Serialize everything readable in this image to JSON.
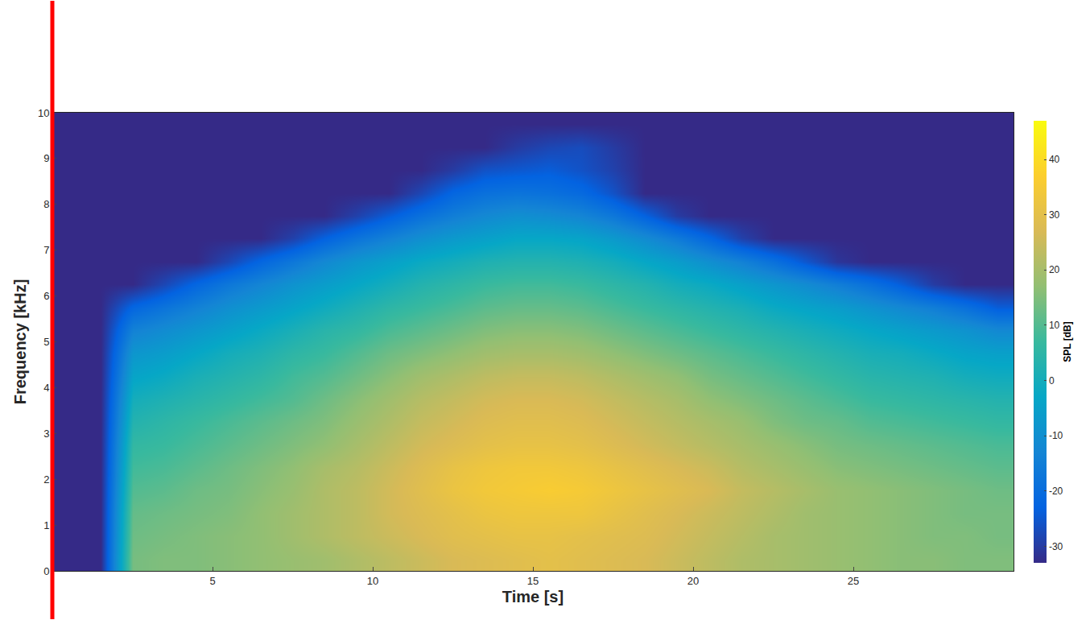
{
  "chart_data": {
    "type": "heatmap",
    "x_label": "Time [s]",
    "y_label": "Frequency [kHz]",
    "grid": false,
    "xlim": [
      0,
      30
    ],
    "ylim": [
      0,
      10
    ],
    "xticks": [
      5,
      10,
      15,
      20,
      25
    ],
    "yticks": [
      0,
      1,
      2,
      3,
      4,
      5,
      6,
      7,
      8,
      9,
      10
    ],
    "x": [
      0.5,
      1.5,
      2.5,
      3.5,
      4.5,
      5.5,
      6.5,
      7.5,
      8.5,
      9.5,
      10.5,
      11.5,
      12.5,
      13.5,
      14.5,
      15.5,
      16.5,
      17.5,
      18.5,
      19.5,
      20.5,
      21.5,
      22.5,
      23.5,
      24.5,
      25.5,
      26.5,
      27.5,
      28.5,
      29.5
    ],
    "y": [
      0.25,
      0.75,
      1.25,
      1.75,
      2.25,
      2.75,
      3.25,
      3.75,
      4.25,
      4.75,
      5.25,
      5.75,
      6.25,
      6.75,
      7.25,
      7.75,
      8.25,
      8.75,
      9.25,
      9.75
    ],
    "z": [
      [
        -33,
        -33,
        14,
        15,
        15,
        16,
        17,
        18,
        19,
        21,
        23,
        25,
        27,
        28,
        29,
        30,
        29,
        28,
        27,
        25,
        23,
        21,
        20,
        19,
        18,
        17,
        16,
        16,
        15,
        15
      ],
      [
        -33,
        -33,
        13,
        14,
        15,
        16,
        17,
        19,
        21,
        23,
        25,
        27,
        29,
        30,
        31,
        31,
        30,
        29,
        28,
        26,
        24,
        22,
        20,
        19,
        18,
        17,
        16,
        15,
        15,
        14
      ],
      [
        -33,
        -33,
        12,
        13,
        14,
        15,
        17,
        19,
        21,
        23,
        26,
        28,
        30,
        32,
        33,
        33,
        33,
        31,
        29,
        27,
        25,
        23,
        21,
        19,
        18,
        17,
        16,
        15,
        14,
        14
      ],
      [
        -33,
        -33,
        10,
        11,
        13,
        14,
        16,
        18,
        21,
        23,
        26,
        29,
        32,
        34,
        35,
        36,
        35,
        33,
        31,
        29,
        27,
        24,
        22,
        20,
        18,
        17,
        16,
        15,
        14,
        13
      ],
      [
        -33,
        -33,
        8,
        9,
        11,
        13,
        15,
        17,
        20,
        22,
        25,
        28,
        31,
        33,
        34,
        34,
        33,
        31,
        29,
        27,
        25,
        22,
        20,
        18,
        16,
        15,
        14,
        13,
        12,
        11
      ],
      [
        -33,
        -33,
        6,
        7,
        9,
        11,
        13,
        15,
        17,
        20,
        23,
        26,
        28,
        30,
        31,
        31,
        30,
        28,
        26,
        24,
        22,
        20,
        18,
        16,
        14,
        13,
        12,
        11,
        10,
        9
      ],
      [
        -33,
        -33,
        3,
        5,
        7,
        9,
        11,
        13,
        15,
        18,
        21,
        24,
        26,
        28,
        29,
        29,
        28,
        26,
        24,
        22,
        20,
        18,
        15,
        13,
        12,
        10,
        9,
        8,
        7,
        6
      ],
      [
        -33,
        -33,
        0,
        2,
        4,
        6,
        8,
        10,
        13,
        16,
        19,
        22,
        24,
        26,
        27,
        27,
        26,
        24,
        22,
        20,
        17,
        15,
        13,
        11,
        9,
        7,
        6,
        5,
        4,
        3
      ],
      [
        -33,
        -33,
        -4,
        -2,
        1,
        3,
        5,
        8,
        10,
        13,
        16,
        19,
        21,
        23,
        24,
        24,
        23,
        21,
        19,
        17,
        14,
        12,
        10,
        8,
        6,
        4,
        3,
        2,
        0,
        -1
      ],
      [
        -33,
        -33,
        -8,
        -6,
        -3,
        0,
        2,
        5,
        7,
        10,
        13,
        15,
        17,
        19,
        20,
        20,
        19,
        17,
        15,
        13,
        11,
        9,
        7,
        5,
        3,
        1,
        0,
        -2,
        -4,
        -5
      ],
      [
        -33,
        -33,
        -14,
        -11,
        -8,
        -5,
        -2,
        1,
        4,
        6,
        9,
        11,
        13,
        15,
        16,
        16,
        15,
        13,
        11,
        9,
        7,
        5,
        3,
        1,
        -1,
        -3,
        -5,
        -7,
        -9,
        -12
      ],
      [
        -33,
        -33,
        -22,
        -18,
        -14,
        -10,
        -7,
        -4,
        -1,
        2,
        5,
        7,
        9,
        11,
        12,
        12,
        11,
        9,
        7,
        5,
        3,
        1,
        -2,
        -4,
        -6,
        -9,
        -12,
        -15,
        -19,
        -24
      ],
      [
        -33,
        -33,
        -33,
        -28,
        -22,
        -17,
        -13,
        -9,
        -6,
        -3,
        0,
        3,
        5,
        7,
        8,
        8,
        7,
        5,
        3,
        0,
        -2,
        -5,
        -8,
        -11,
        -15,
        -19,
        -24,
        -30,
        -33,
        -33
      ],
      [
        -33,
        -33,
        -33,
        -33,
        -33,
        -28,
        -22,
        -17,
        -12,
        -8,
        -5,
        -2,
        0,
        2,
        3,
        3,
        2,
        0,
        -3,
        -6,
        -10,
        -14,
        -19,
        -25,
        -31,
        -33,
        -33,
        -33,
        -33,
        -33
      ],
      [
        -33,
        -33,
        -33,
        -33,
        -33,
        -33,
        -33,
        -29,
        -23,
        -18,
        -14,
        -10,
        -7,
        -5,
        -3,
        -3,
        -4,
        -7,
        -11,
        -16,
        -22,
        -29,
        -33,
        -33,
        -33,
        -33,
        -33,
        -33,
        -33,
        -33
      ],
      [
        -33,
        -33,
        -33,
        -33,
        -33,
        -33,
        -33,
        -33,
        -33,
        -29,
        -24,
        -19,
        -15,
        -12,
        -10,
        -11,
        -13,
        -17,
        -23,
        -30,
        -33,
        -33,
        -33,
        -33,
        -33,
        -33,
        -33,
        -33,
        -33,
        -33
      ],
      [
        -33,
        -33,
        -33,
        -33,
        -33,
        -33,
        -33,
        -33,
        -33,
        -33,
        -33,
        -28,
        -22,
        -19,
        -18,
        -19,
        -21,
        -26,
        -33,
        -33,
        -33,
        -33,
        -33,
        -33,
        -33,
        -33,
        -33,
        -33,
        -33,
        -33
      ],
      [
        -33,
        -33,
        -33,
        -33,
        -33,
        -33,
        -33,
        -33,
        -33,
        -33,
        -33,
        -33,
        -30,
        -26,
        -25,
        -24,
        -26,
        -29,
        -33,
        -33,
        -33,
        -33,
        -33,
        -33,
        -33,
        -33,
        -33,
        -33,
        -33,
        -33
      ],
      [
        -33,
        -33,
        -33,
        -33,
        -33,
        -33,
        -33,
        -33,
        -33,
        -33,
        -33,
        -33,
        -33,
        -33,
        -30,
        -28,
        -27,
        -30,
        -33,
        -33,
        -33,
        -33,
        -33,
        -33,
        -33,
        -33,
        -33,
        -33,
        -33,
        -33
      ],
      [
        -33,
        -33,
        -33,
        -33,
        -33,
        -33,
        -33,
        -33,
        -33,
        -33,
        -33,
        -33,
        -33,
        -33,
        -33,
        -33,
        -33,
        -33,
        -33,
        -33,
        -33,
        -33,
        -33,
        -33,
        -33,
        -33,
        -33,
        -33,
        -33,
        -33
      ]
    ],
    "colorbar": {
      "title": "SPL [dB]",
      "range": [
        -33,
        47
      ],
      "ticks": [
        -30,
        -20,
        -10,
        0,
        10,
        20,
        30,
        40
      ]
    }
  }
}
